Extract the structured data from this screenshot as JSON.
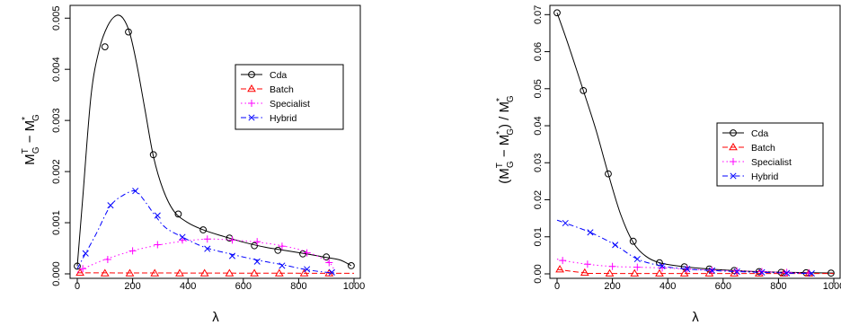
{
  "chart_data": [
    {
      "type": "line",
      "xlabel": "λ",
      "ylabel_main": "M",
      "ylabel_sup": "T",
      "ylabel_sub": "G",
      "ylabel_mid": " − M",
      "ylabel_sup2": "*",
      "ylabel_sub2": "G",
      "xlim": [
        0,
        1000
      ],
      "ylim": [
        0,
        0.00525
      ],
      "xticks": [
        "0",
        "200",
        "400",
        "600",
        "800",
        "1000"
      ],
      "xtick_values": [
        0,
        200,
        400,
        600,
        800,
        1000
      ],
      "yticks": [
        "0.000",
        "0.001",
        "0.002",
        "0.003",
        "0.004",
        "0.005"
      ],
      "ytick_values": [
        0,
        0.001,
        0.002,
        0.003,
        0.004,
        0.005
      ],
      "legend": {
        "placement": "right-middle"
      },
      "series": [
        {
          "name": "Cda",
          "color": "#000000",
          "marker": "circle",
          "dash": "",
          "curve": [
            [
              0,
              0.00015
            ],
            [
              20,
              0.0015
            ],
            [
              50,
              0.0035
            ],
            [
              80,
              0.0044
            ],
            [
              110,
              0.00485
            ],
            [
              140,
              0.00505
            ],
            [
              165,
              0.005
            ],
            [
              190,
              0.0047
            ],
            [
              215,
              0.0041
            ],
            [
              245,
              0.0032
            ],
            [
              275,
              0.0023
            ],
            [
              310,
              0.00165
            ],
            [
              350,
              0.00122
            ],
            [
              400,
              0.001
            ],
            [
              460,
              0.00085
            ],
            [
              530,
              0.00073
            ],
            [
              600,
              0.00062
            ],
            [
              680,
              0.00052
            ],
            [
              760,
              0.00045
            ],
            [
              840,
              0.00038
            ],
            [
              900,
              0.00032
            ],
            [
              950,
              0.00027
            ],
            [
              990,
              0.00016
            ]
          ],
          "points": [
            [
              0,
              0.00015
            ],
            [
              100,
              0.00444
            ],
            [
              185,
              0.00473
            ],
            [
              275,
              0.00233
            ],
            [
              365,
              0.00117
            ],
            [
              455,
              0.00086
            ],
            [
              550,
              0.0007
            ],
            [
              640,
              0.00055
            ],
            [
              725,
              0.00046
            ],
            [
              815,
              0.00039
            ],
            [
              900,
              0.00033
            ],
            [
              990,
              0.00016
            ]
          ]
        },
        {
          "name": "Batch",
          "color": "#ff0000",
          "marker": "triangle",
          "dash": "6,3",
          "curve": [
            [
              0,
              2e-05
            ],
            [
              1000,
              1e-05
            ]
          ],
          "points": [
            [
              10,
              2e-05
            ],
            [
              100,
              1e-05
            ],
            [
              190,
              1e-05
            ],
            [
              280,
              1e-05
            ],
            [
              370,
              1e-05
            ],
            [
              460,
              1e-05
            ],
            [
              550,
              1e-05
            ],
            [
              640,
              1e-05
            ],
            [
              730,
              1e-05
            ],
            [
              820,
              1e-05
            ],
            [
              910,
              1e-05
            ]
          ]
        },
        {
          "name": "Specialist",
          "color": "#ff00ff",
          "marker": "plus",
          "dash": "1.5,3",
          "curve": [
            [
              0,
              3e-05
            ],
            [
              30,
              0.00012
            ],
            [
              100,
              0.00028
            ],
            [
              200,
              0.00045
            ],
            [
              300,
              0.00057
            ],
            [
              400,
              0.00065
            ],
            [
              480,
              0.00068
            ],
            [
              560,
              0.00066
            ],
            [
              650,
              0.00062
            ],
            [
              750,
              0.00054
            ],
            [
              840,
              0.00041
            ],
            [
              910,
              0.00022
            ],
            [
              930,
              5e-05
            ]
          ],
          "points": [
            [
              20,
              0.0001
            ],
            [
              110,
              0.00028
            ],
            [
              200,
              0.00045
            ],
            [
              290,
              0.00057
            ],
            [
              380,
              0.00066
            ],
            [
              470,
              0.00068
            ],
            [
              560,
              0.00066
            ],
            [
              650,
              0.00063
            ],
            [
              740,
              0.00054
            ],
            [
              830,
              0.00041
            ],
            [
              910,
              0.00022
            ]
          ]
        },
        {
          "name": "Hybrid",
          "color": "#0000ff",
          "marker": "cross",
          "dash": "6,3,1.5,3",
          "curve": [
            [
              0,
              0.0001
            ],
            [
              30,
              0.0004
            ],
            [
              70,
              0.0008
            ],
            [
              120,
              0.00133
            ],
            [
              170,
              0.00155
            ],
            [
              210,
              0.00162
            ],
            [
              240,
              0.00145
            ],
            [
              280,
              0.00115
            ],
            [
              320,
              0.0009
            ],
            [
              380,
              0.00072
            ],
            [
              460,
              0.00052
            ],
            [
              560,
              0.00038
            ],
            [
              650,
              0.00027
            ],
            [
              740,
              0.00018
            ],
            [
              830,
              8e-05
            ],
            [
              900,
              3e-05
            ],
            [
              930,
              2e-05
            ]
          ],
          "points": [
            [
              30,
              0.0004
            ],
            [
              120,
              0.00134
            ],
            [
              210,
              0.00162
            ],
            [
              290,
              0.00114
            ],
            [
              380,
              0.00072
            ],
            [
              470,
              0.00049
            ],
            [
              560,
              0.00035
            ],
            [
              650,
              0.00024
            ],
            [
              740,
              0.00016
            ],
            [
              830,
              9e-05
            ],
            [
              920,
              3e-05
            ]
          ]
        }
      ]
    },
    {
      "type": "line",
      "xlabel": "λ",
      "ylabel_pre": "(M",
      "ylabel_sup": "T",
      "ylabel_sub": "G",
      "ylabel_mid": " − M",
      "ylabel_sup2": "*",
      "ylabel_sub2": "G",
      "ylabel_mid2": ") / M",
      "ylabel_sup3": "*",
      "ylabel_sub3": "G",
      "xlim": [
        0,
        1000
      ],
      "ylim": [
        0,
        0.0725
      ],
      "xticks": [
        "0",
        "200",
        "400",
        "600",
        "800",
        "1000"
      ],
      "xtick_values": [
        0,
        200,
        400,
        600,
        800,
        1000
      ],
      "yticks": [
        "0.00",
        "0.01",
        "0.02",
        "0.03",
        "0.04",
        "0.05",
        "0.06",
        "0.07"
      ],
      "ytick_values": [
        0,
        0.01,
        0.02,
        0.03,
        0.04,
        0.05,
        0.06,
        0.07
      ],
      "legend": {
        "placement": "right-middle"
      },
      "series": [
        {
          "name": "Cda",
          "color": "#000000",
          "marker": "circle",
          "dash": "",
          "curve": [
            [
              0,
              0.0705
            ],
            [
              40,
              0.062
            ],
            [
              95,
              0.0495
            ],
            [
              140,
              0.039
            ],
            [
              185,
              0.027
            ],
            [
              230,
              0.016
            ],
            [
              275,
              0.0085
            ],
            [
              320,
              0.0048
            ],
            [
              370,
              0.003
            ],
            [
              450,
              0.002
            ],
            [
              550,
              0.0013
            ],
            [
              650,
              0.00085
            ],
            [
              750,
              0.00055
            ],
            [
              850,
              0.0004
            ],
            [
              1000,
              0.0002
            ]
          ],
          "points": [
            [
              0,
              0.0705
            ],
            [
              95,
              0.0495
            ],
            [
              185,
              0.027
            ],
            [
              275,
              0.0088
            ],
            [
              370,
              0.003
            ],
            [
              460,
              0.0019
            ],
            [
              550,
              0.0013
            ],
            [
              640,
              0.0009
            ],
            [
              730,
              0.0006
            ],
            [
              810,
              0.0004
            ],
            [
              900,
              0.0003
            ],
            [
              990,
              0.0002
            ]
          ]
        },
        {
          "name": "Batch",
          "color": "#ff0000",
          "marker": "triangle",
          "dash": "6,3",
          "curve": [
            [
              0,
              0.0012
            ],
            [
              100,
              0.0003
            ],
            [
              200,
              0.0001
            ],
            [
              1000,
              0.0001
            ]
          ],
          "points": [
            [
              10,
              0.0012
            ],
            [
              100,
              0.0003
            ],
            [
              190,
              0.0001
            ],
            [
              280,
              0.0001
            ],
            [
              370,
              0.0001
            ],
            [
              460,
              0.0001
            ],
            [
              550,
              0.0001
            ],
            [
              640,
              0.0001
            ],
            [
              730,
              0.0001
            ],
            [
              820,
              0.0001
            ],
            [
              910,
              0.0001
            ]
          ]
        },
        {
          "name": "Specialist",
          "color": "#ff00ff",
          "marker": "plus",
          "dash": "1.5,3",
          "curve": [
            [
              0,
              0.004
            ],
            [
              20,
              0.0036
            ],
            [
              110,
              0.0026
            ],
            [
              200,
              0.002
            ],
            [
              290,
              0.0018
            ],
            [
              380,
              0.0016
            ],
            [
              470,
              0.0013
            ],
            [
              560,
              0.001
            ],
            [
              650,
              0.0008
            ],
            [
              740,
              0.0006
            ],
            [
              830,
              0.0004
            ],
            [
              910,
              0.0002
            ]
          ],
          "points": [
            [
              20,
              0.0036
            ],
            [
              110,
              0.0026
            ],
            [
              200,
              0.002
            ],
            [
              290,
              0.0018
            ],
            [
              380,
              0.0016
            ],
            [
              470,
              0.0013
            ],
            [
              560,
              0.001
            ],
            [
              650,
              0.0008
            ],
            [
              740,
              0.0006
            ],
            [
              830,
              0.0004
            ],
            [
              910,
              0.0002
            ]
          ]
        },
        {
          "name": "Hybrid",
          "color": "#0000ff",
          "marker": "cross",
          "dash": "6,3,1.5,3",
          "curve": [
            [
              0,
              0.0145
            ],
            [
              30,
              0.0137
            ],
            [
              120,
              0.0112
            ],
            [
              210,
              0.0078
            ],
            [
              290,
              0.004
            ],
            [
              380,
              0.0021
            ],
            [
              470,
              0.0013
            ],
            [
              560,
              0.0009
            ],
            [
              650,
              0.0006
            ],
            [
              740,
              0.0004
            ],
            [
              830,
              0.0002
            ],
            [
              920,
              0.0001
            ]
          ],
          "points": [
            [
              30,
              0.0137
            ],
            [
              120,
              0.0112
            ],
            [
              210,
              0.0078
            ],
            [
              290,
              0.004
            ],
            [
              380,
              0.0021
            ],
            [
              470,
              0.0013
            ],
            [
              560,
              0.0009
            ],
            [
              650,
              0.0006
            ],
            [
              740,
              0.0004
            ],
            [
              830,
              0.0002
            ],
            [
              920,
              0.0001
            ]
          ]
        }
      ]
    }
  ]
}
